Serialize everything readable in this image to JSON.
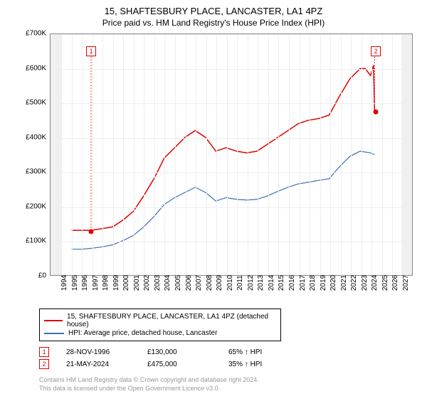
{
  "title": "15, SHAFTESBURY PLACE, LANCASTER, LA1 4PZ",
  "subtitle": "Price paid vs. HM Land Registry's House Price Index (HPI)",
  "chart": {
    "type": "line",
    "background_color": "#ffffff",
    "plot_outer_bg": "#f0f0f0",
    "plot_inner_bg": "#ffffff",
    "grid_color": "#eeeeee",
    "axis_color": "#888888",
    "label_fontsize": 10,
    "title_fontsize": 13,
    "x_axis": {
      "min": 1994,
      "max": 2027,
      "ticks": [
        1994,
        1995,
        1996,
        1997,
        1998,
        1999,
        2000,
        2001,
        2002,
        2003,
        2004,
        2005,
        2006,
        2007,
        2008,
        2009,
        2010,
        2011,
        2012,
        2013,
        2014,
        2015,
        2016,
        2017,
        2018,
        2019,
        2020,
        2021,
        2022,
        2023,
        2024,
        2025,
        2026,
        2027
      ],
      "rotation": -90
    },
    "y_axis": {
      "min": 0,
      "max": 700000,
      "ticks": [
        0,
        100000,
        200000,
        300000,
        400000,
        500000,
        600000,
        700000
      ],
      "tick_labels": [
        "£0",
        "£100K",
        "£200K",
        "£300K",
        "£400K",
        "£500K",
        "£600K",
        "£700K"
      ]
    },
    "series": [
      {
        "name": "15, SHAFTESBURY PLACE, LANCASTER, LA1 4PZ (detached house)",
        "color": "#e00000",
        "line_width": 1.5,
        "data": [
          [
            1995,
            130000
          ],
          [
            1996,
            130000
          ],
          [
            1996.9,
            130000
          ],
          [
            1998,
            135000
          ],
          [
            1999,
            140000
          ],
          [
            2000,
            160000
          ],
          [
            2001,
            185000
          ],
          [
            2002,
            230000
          ],
          [
            2003,
            280000
          ],
          [
            2004,
            340000
          ],
          [
            2005,
            370000
          ],
          [
            2006,
            400000
          ],
          [
            2007,
            420000
          ],
          [
            2008,
            400000
          ],
          [
            2009,
            360000
          ],
          [
            2010,
            370000
          ],
          [
            2011,
            360000
          ],
          [
            2012,
            355000
          ],
          [
            2013,
            360000
          ],
          [
            2014,
            380000
          ],
          [
            2015,
            400000
          ],
          [
            2016,
            420000
          ],
          [
            2017,
            440000
          ],
          [
            2018,
            450000
          ],
          [
            2019,
            455000
          ],
          [
            2020,
            465000
          ],
          [
            2021,
            520000
          ],
          [
            2022,
            570000
          ],
          [
            2023,
            600000
          ],
          [
            2023.5,
            600000
          ],
          [
            2024,
            580000
          ],
          [
            2024.3,
            610000
          ],
          [
            2024.4,
            475000
          ]
        ]
      },
      {
        "name": "HPI: Average price, detached house, Lancaster",
        "color": "#3b6fb6",
        "line_width": 1.2,
        "data": [
          [
            1995,
            75000
          ],
          [
            1996,
            75000
          ],
          [
            1997,
            78000
          ],
          [
            1998,
            82000
          ],
          [
            1999,
            88000
          ],
          [
            2000,
            100000
          ],
          [
            2001,
            115000
          ],
          [
            2002,
            140000
          ],
          [
            2003,
            170000
          ],
          [
            2004,
            205000
          ],
          [
            2005,
            225000
          ],
          [
            2006,
            240000
          ],
          [
            2007,
            255000
          ],
          [
            2008,
            240000
          ],
          [
            2009,
            215000
          ],
          [
            2010,
            225000
          ],
          [
            2011,
            220000
          ],
          [
            2012,
            218000
          ],
          [
            2013,
            220000
          ],
          [
            2014,
            230000
          ],
          [
            2015,
            243000
          ],
          [
            2016,
            255000
          ],
          [
            2017,
            265000
          ],
          [
            2018,
            270000
          ],
          [
            2019,
            275000
          ],
          [
            2020,
            280000
          ],
          [
            2021,
            315000
          ],
          [
            2022,
            345000
          ],
          [
            2023,
            360000
          ],
          [
            2024,
            355000
          ],
          [
            2024.4,
            350000
          ]
        ]
      }
    ],
    "markers": [
      {
        "label": "1",
        "x": 1996.9,
        "y": 130000,
        "box_color": "#e00000",
        "dot_color": "#e00000",
        "box_y": 650000
      },
      {
        "label": "2",
        "x": 2024.4,
        "y": 475000,
        "box_color": "#e00000",
        "dot_color": "#e00000",
        "box_y": 650000
      }
    ]
  },
  "legend": {
    "items": [
      {
        "color": "#e00000",
        "label": "15, SHAFTESBURY PLACE, LANCASTER, LA1 4PZ (detached house)"
      },
      {
        "color": "#3b6fb6",
        "label": "HPI: Average price, detached house, Lancaster"
      }
    ]
  },
  "transactions": [
    {
      "marker": "1",
      "color": "#e00000",
      "date": "28-NOV-1996",
      "price": "£130,000",
      "delta": "65% ↑ HPI"
    },
    {
      "marker": "2",
      "color": "#e00000",
      "date": "21-MAY-2024",
      "price": "£475,000",
      "delta": "35% ↑ HPI"
    }
  ],
  "footer": {
    "line1": "Contains HM Land Registry data © Crown copyright and database right 2024.",
    "line2": "This data is licensed under the Open Government Licence v3.0."
  }
}
